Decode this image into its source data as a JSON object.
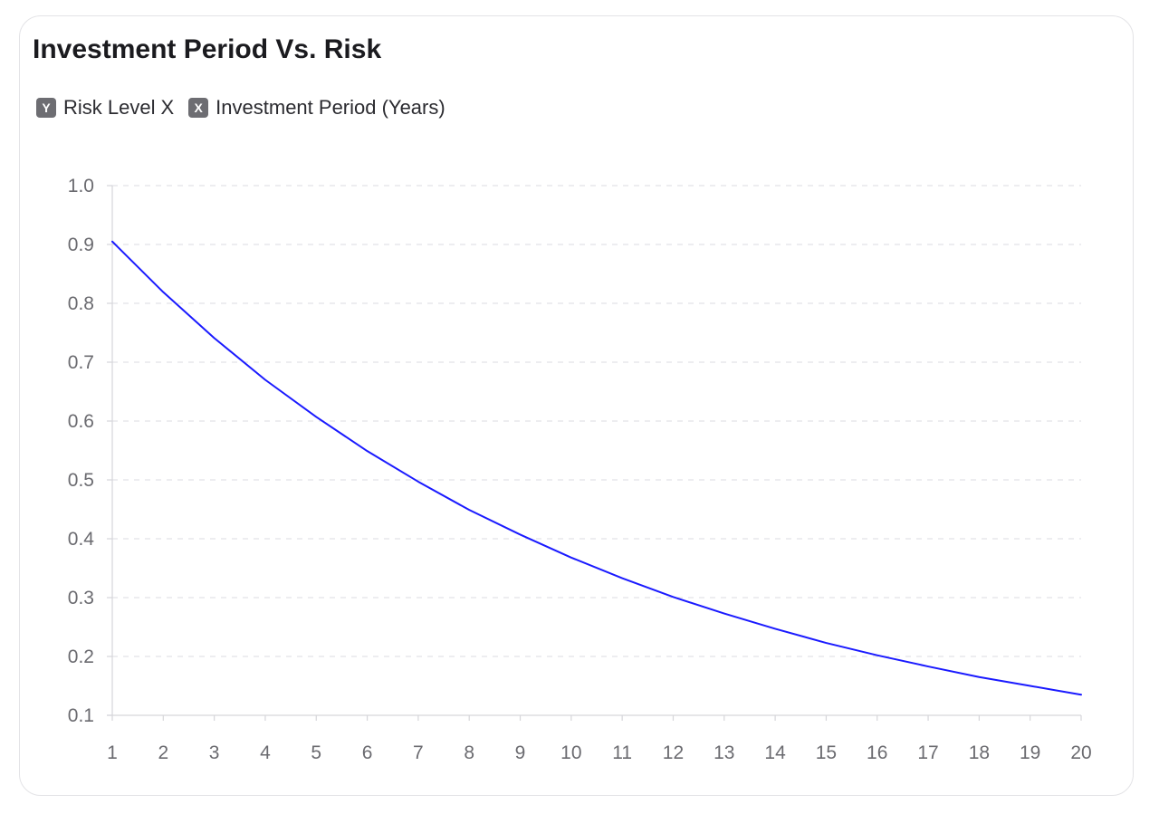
{
  "card": {
    "title": "Investment Period Vs. Risk"
  },
  "legend": {
    "items": [
      {
        "badge": "Y",
        "label": "Risk Level",
        "suffix": "X"
      },
      {
        "badge": "X",
        "label": "Investment Period (Years)",
        "suffix": ""
      }
    ]
  },
  "chart_data": {
    "type": "line",
    "title": "Investment Period Vs. Risk",
    "xlabel": "",
    "ylabel": "",
    "xlim": [
      1,
      20
    ],
    "ylim": [
      0.1,
      1.0
    ],
    "x_ticks": [
      "1",
      "2",
      "3",
      "4",
      "5",
      "6",
      "7",
      "8",
      "9",
      "10",
      "11",
      "12",
      "13",
      "14",
      "15",
      "16",
      "17",
      "18",
      "19",
      "20"
    ],
    "y_ticks": [
      "1.0",
      "0.9",
      "0.8",
      "0.7",
      "0.6",
      "0.5",
      "0.4",
      "0.3",
      "0.2",
      "0.1"
    ],
    "grid": true,
    "line_color": "#1a1aff",
    "x": [
      1,
      2,
      3,
      4,
      5,
      6,
      7,
      8,
      9,
      10,
      11,
      12,
      13,
      14,
      15,
      16,
      17,
      18,
      19,
      20
    ],
    "series": [
      {
        "values": [
          0.905,
          0.819,
          0.741,
          0.67,
          0.607,
          0.549,
          0.497,
          0.449,
          0.407,
          0.368,
          0.333,
          0.301,
          0.273,
          0.247,
          0.223,
          0.202,
          0.183,
          0.165,
          0.15,
          0.135
        ]
      }
    ]
  }
}
